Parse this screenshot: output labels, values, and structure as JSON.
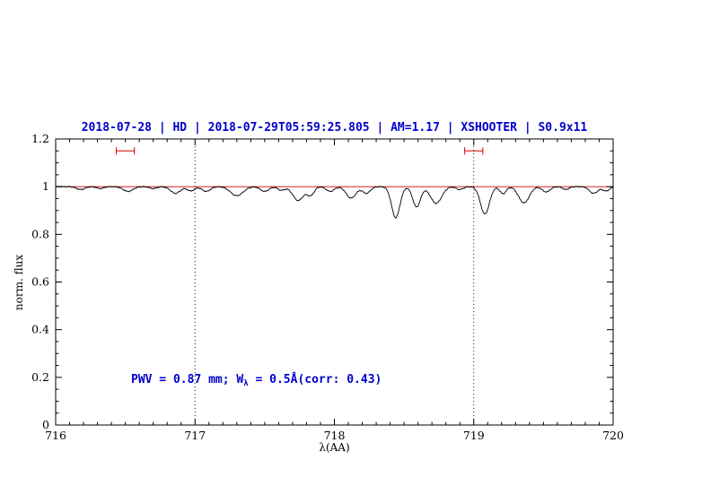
{
  "chart_data": {
    "type": "line",
    "title": "2018-07-28 | HD | 2018-07-29T05:59:25.805 | AM=1.17 | XSHOOTER | S0.9x11",
    "title_color": "#0000cc",
    "xlabel": "λ(AA)",
    "ylabel": "norm. flux",
    "xlim": [
      716,
      720
    ],
    "ylim": [
      0,
      1.2
    ],
    "xticks": [
      716,
      717,
      718,
      719,
      720
    ],
    "xtick_labels": [
      "716",
      "717",
      "718",
      "719",
      "720"
    ],
    "yticks": [
      0,
      0.2,
      0.4,
      0.6,
      0.8,
      1,
      1.2
    ],
    "ytick_labels": [
      "0",
      "0.2",
      "0.4",
      "0.6",
      "0.8",
      "1",
      "1.2"
    ],
    "grid": false,
    "legend": "none",
    "line_color": "#000000",
    "continuum_level": 1.0,
    "continuum_color": "#cc0000",
    "dotted_vlines": [
      717,
      719
    ],
    "range_markers": [
      {
        "x_center": 716.5,
        "x_halfwidth": 0.065,
        "y": 1.15,
        "color": "#cc0000"
      },
      {
        "x_center": 719.0,
        "x_halfwidth": 0.065,
        "y": 1.15,
        "color": "#cc0000"
      }
    ],
    "annotation": {
      "prefix": "PWV = 0.87 mm; W",
      "subscript": "λ",
      "suffix": " = 0.5Å(corr: 0.43)",
      "color": "#0000cc",
      "xy": [
        716.55,
        0.2
      ]
    },
    "absorption_lines": [
      {
        "center": 716.18,
        "depth": 0.012,
        "sigma": 0.03
      },
      {
        "center": 716.32,
        "depth": 0.008,
        "sigma": 0.025
      },
      {
        "center": 716.52,
        "depth": 0.02,
        "sigma": 0.035
      },
      {
        "center": 716.7,
        "depth": 0.008,
        "sigma": 0.025
      },
      {
        "center": 716.86,
        "depth": 0.028,
        "sigma": 0.035
      },
      {
        "center": 716.97,
        "depth": 0.018,
        "sigma": 0.025
      },
      {
        "center": 717.08,
        "depth": 0.02,
        "sigma": 0.03
      },
      {
        "center": 717.3,
        "depth": 0.038,
        "sigma": 0.045
      },
      {
        "center": 717.5,
        "depth": 0.02,
        "sigma": 0.03
      },
      {
        "center": 717.62,
        "depth": 0.015,
        "sigma": 0.025
      },
      {
        "center": 717.74,
        "depth": 0.058,
        "sigma": 0.038
      },
      {
        "center": 717.83,
        "depth": 0.035,
        "sigma": 0.025
      },
      {
        "center": 717.97,
        "depth": 0.02,
        "sigma": 0.028
      },
      {
        "center": 718.12,
        "depth": 0.048,
        "sigma": 0.035
      },
      {
        "center": 718.23,
        "depth": 0.028,
        "sigma": 0.028
      },
      {
        "center": 718.44,
        "depth": 0.13,
        "sigma": 0.03
      },
      {
        "center": 718.59,
        "depth": 0.085,
        "sigma": 0.028
      },
      {
        "center": 718.73,
        "depth": 0.07,
        "sigma": 0.04
      },
      {
        "center": 718.9,
        "depth": 0.012,
        "sigma": 0.025
      },
      {
        "center": 719.08,
        "depth": 0.115,
        "sigma": 0.032
      },
      {
        "center": 719.21,
        "depth": 0.03,
        "sigma": 0.022
      },
      {
        "center": 719.36,
        "depth": 0.068,
        "sigma": 0.038
      },
      {
        "center": 719.52,
        "depth": 0.022,
        "sigma": 0.028
      },
      {
        "center": 719.66,
        "depth": 0.012,
        "sigma": 0.022
      },
      {
        "center": 719.86,
        "depth": 0.028,
        "sigma": 0.03
      },
      {
        "center": 719.95,
        "depth": 0.018,
        "sigma": 0.025
      }
    ]
  }
}
